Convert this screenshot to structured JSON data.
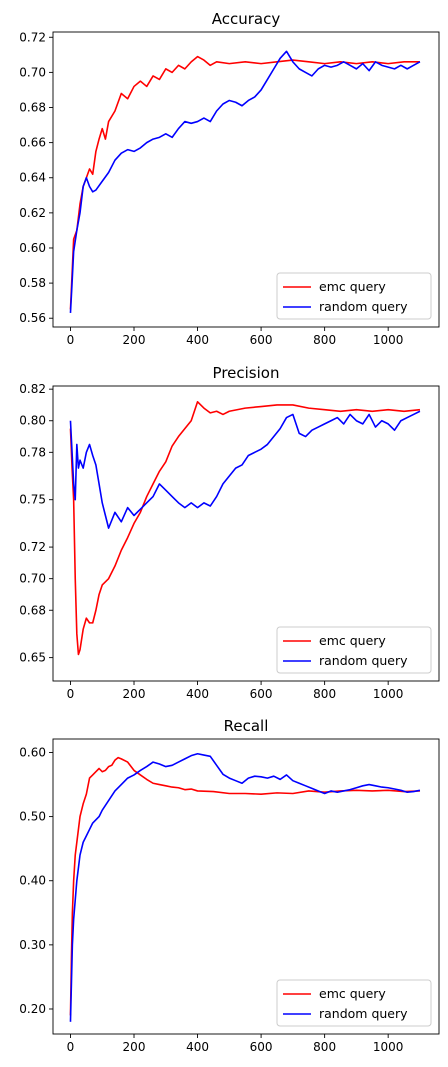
{
  "chart_data": [
    {
      "type": "line",
      "title": "Accuracy",
      "xlim": [
        -55,
        1160
      ],
      "ylim": [
        0.555,
        0.723
      ],
      "xticks": [
        0,
        200,
        400,
        600,
        800,
        1000
      ],
      "yticks": [
        0.56,
        0.58,
        0.6,
        0.62,
        0.64,
        0.66,
        0.68,
        0.7,
        0.72
      ],
      "ytick_labels": [
        "0.56",
        "0.58",
        "0.60",
        "0.62",
        "0.64",
        "0.66",
        "0.68",
        "0.70",
        "0.72"
      ],
      "legend_position": "lower right",
      "series": [
        {
          "name": "emc query",
          "color": "#ff0000",
          "x": [
            0,
            5,
            10,
            20,
            30,
            40,
            50,
            60,
            70,
            80,
            90,
            100,
            110,
            120,
            140,
            160,
            180,
            200,
            220,
            240,
            260,
            280,
            300,
            320,
            340,
            360,
            380,
            400,
            420,
            440,
            460,
            500,
            550,
            600,
            650,
            700,
            750,
            800,
            850,
            900,
            950,
            1000,
            1050,
            1100
          ],
          "y": [
            0.565,
            0.585,
            0.605,
            0.61,
            0.625,
            0.635,
            0.64,
            0.645,
            0.642,
            0.655,
            0.662,
            0.668,
            0.662,
            0.672,
            0.678,
            0.688,
            0.685,
            0.692,
            0.695,
            0.692,
            0.698,
            0.696,
            0.702,
            0.7,
            0.704,
            0.702,
            0.706,
            0.709,
            0.707,
            0.704,
            0.706,
            0.705,
            0.706,
            0.705,
            0.706,
            0.707,
            0.706,
            0.705,
            0.706,
            0.705,
            0.706,
            0.705,
            0.706,
            0.706
          ]
        },
        {
          "name": "random query",
          "color": "#0000ff",
          "x": [
            0,
            5,
            10,
            20,
            30,
            40,
            50,
            60,
            70,
            80,
            100,
            120,
            140,
            160,
            180,
            200,
            220,
            240,
            260,
            280,
            300,
            320,
            340,
            360,
            380,
            400,
            420,
            440,
            460,
            480,
            500,
            520,
            540,
            560,
            580,
            600,
            620,
            640,
            660,
            680,
            700,
            720,
            740,
            760,
            780,
            800,
            820,
            840,
            860,
            880,
            900,
            920,
            940,
            960,
            980,
            1000,
            1020,
            1040,
            1060,
            1080,
            1100
          ],
          "y": [
            0.563,
            0.58,
            0.598,
            0.61,
            0.62,
            0.635,
            0.64,
            0.635,
            0.632,
            0.633,
            0.638,
            0.643,
            0.65,
            0.654,
            0.656,
            0.655,
            0.657,
            0.66,
            0.662,
            0.663,
            0.665,
            0.663,
            0.668,
            0.672,
            0.671,
            0.672,
            0.674,
            0.672,
            0.678,
            0.682,
            0.684,
            0.683,
            0.681,
            0.684,
            0.686,
            0.69,
            0.696,
            0.702,
            0.708,
            0.712,
            0.706,
            0.702,
            0.7,
            0.698,
            0.702,
            0.704,
            0.703,
            0.704,
            0.706,
            0.704,
            0.702,
            0.705,
            0.701,
            0.706,
            0.704,
            0.703,
            0.702,
            0.704,
            0.702,
            0.704,
            0.706
          ]
        }
      ]
    },
    {
      "type": "line",
      "title": "Precision",
      "xlim": [
        -55,
        1160
      ],
      "ylim": [
        0.6352,
        0.822
      ],
      "xticks": [
        0,
        200,
        400,
        600,
        800,
        1000
      ],
      "yticks": [
        0.65,
        0.68,
        0.7,
        0.72,
        0.75,
        0.78,
        0.8,
        0.82
      ],
      "ytick_labels": [
        "0.65",
        "0.68",
        "0.70",
        "0.72",
        "0.75",
        "0.78",
        "0.80",
        "0.82"
      ],
      "legend_position": "lower right",
      "series": [
        {
          "name": "emc query",
          "color": "#ff0000",
          "x": [
            0,
            5,
            10,
            15,
            20,
            25,
            30,
            40,
            50,
            60,
            70,
            80,
            90,
            100,
            120,
            140,
            160,
            180,
            200,
            220,
            240,
            260,
            280,
            300,
            320,
            340,
            360,
            380,
            400,
            420,
            440,
            460,
            480,
            500,
            550,
            600,
            650,
            700,
            750,
            800,
            850,
            900,
            950,
            1000,
            1050,
            1100
          ],
          "y": [
            0.795,
            0.77,
            0.75,
            0.7,
            0.665,
            0.652,
            0.655,
            0.668,
            0.675,
            0.672,
            0.672,
            0.68,
            0.69,
            0.696,
            0.7,
            0.708,
            0.718,
            0.726,
            0.735,
            0.742,
            0.752,
            0.76,
            0.768,
            0.774,
            0.784,
            0.79,
            0.795,
            0.8,
            0.812,
            0.808,
            0.805,
            0.806,
            0.804,
            0.806,
            0.808,
            0.809,
            0.81,
            0.81,
            0.808,
            0.807,
            0.806,
            0.807,
            0.806,
            0.807,
            0.806,
            0.807
          ]
        },
        {
          "name": "random query",
          "color": "#0000ff",
          "x": [
            0,
            5,
            10,
            15,
            20,
            25,
            30,
            40,
            50,
            60,
            70,
            80,
            90,
            100,
            110,
            120,
            140,
            160,
            180,
            200,
            220,
            240,
            260,
            280,
            300,
            320,
            340,
            360,
            380,
            400,
            420,
            440,
            460,
            480,
            500,
            520,
            540,
            560,
            580,
            600,
            620,
            640,
            660,
            680,
            700,
            720,
            740,
            760,
            780,
            800,
            820,
            840,
            860,
            880,
            900,
            920,
            940,
            960,
            980,
            1000,
            1020,
            1040,
            1060,
            1080,
            1100
          ],
          "y": [
            0.8,
            0.78,
            0.76,
            0.75,
            0.785,
            0.77,
            0.775,
            0.77,
            0.78,
            0.785,
            0.778,
            0.772,
            0.76,
            0.748,
            0.74,
            0.732,
            0.742,
            0.736,
            0.745,
            0.74,
            0.744,
            0.748,
            0.752,
            0.76,
            0.756,
            0.752,
            0.748,
            0.745,
            0.748,
            0.745,
            0.748,
            0.746,
            0.752,
            0.76,
            0.765,
            0.77,
            0.772,
            0.778,
            0.78,
            0.782,
            0.785,
            0.79,
            0.795,
            0.802,
            0.804,
            0.792,
            0.79,
            0.794,
            0.796,
            0.798,
            0.8,
            0.802,
            0.798,
            0.804,
            0.8,
            0.798,
            0.804,
            0.796,
            0.8,
            0.798,
            0.794,
            0.8,
            0.802,
            0.804,
            0.806
          ]
        }
      ]
    },
    {
      "type": "line",
      "title": "Recall",
      "xlim": [
        -55,
        1160
      ],
      "ylim": [
        0.161,
        0.621
      ],
      "xticks": [
        0,
        200,
        400,
        600,
        800,
        1000
      ],
      "yticks": [
        0.2,
        0.3,
        0.4,
        0.5,
        0.6
      ],
      "ytick_labels": [
        "0.20",
        "0.30",
        "0.40",
        "0.50",
        "0.60"
      ],
      "legend_position": "lower right",
      "series": [
        {
          "name": "emc query",
          "color": "#ff0000",
          "x": [
            0,
            3,
            6,
            10,
            15,
            20,
            30,
            40,
            50,
            60,
            70,
            80,
            90,
            100,
            110,
            120,
            130,
            140,
            150,
            160,
            180,
            200,
            220,
            240,
            260,
            280,
            300,
            320,
            340,
            360,
            380,
            400,
            450,
            500,
            550,
            600,
            650,
            700,
            750,
            800,
            850,
            900,
            950,
            1000,
            1050,
            1100
          ],
          "y": [
            0.19,
            0.28,
            0.35,
            0.4,
            0.44,
            0.46,
            0.5,
            0.52,
            0.535,
            0.56,
            0.565,
            0.57,
            0.575,
            0.57,
            0.572,
            0.578,
            0.58,
            0.588,
            0.592,
            0.59,
            0.585,
            0.572,
            0.565,
            0.558,
            0.552,
            0.55,
            0.548,
            0.546,
            0.545,
            0.542,
            0.543,
            0.54,
            0.539,
            0.536,
            0.536,
            0.535,
            0.537,
            0.536,
            0.54,
            0.538,
            0.54,
            0.541,
            0.54,
            0.541,
            0.539,
            0.54
          ]
        },
        {
          "name": "random query",
          "color": "#0000ff",
          "x": [
            0,
            3,
            6,
            10,
            15,
            20,
            30,
            40,
            50,
            60,
            70,
            80,
            90,
            100,
            120,
            140,
            160,
            180,
            200,
            220,
            240,
            260,
            280,
            300,
            320,
            340,
            360,
            380,
            400,
            420,
            440,
            460,
            480,
            500,
            520,
            540,
            560,
            580,
            600,
            620,
            640,
            660,
            680,
            700,
            720,
            740,
            760,
            780,
            800,
            820,
            840,
            860,
            880,
            900,
            920,
            940,
            960,
            980,
            1000,
            1020,
            1040,
            1060,
            1080,
            1100
          ],
          "y": [
            0.18,
            0.24,
            0.3,
            0.34,
            0.37,
            0.4,
            0.44,
            0.46,
            0.47,
            0.48,
            0.49,
            0.495,
            0.5,
            0.51,
            0.525,
            0.54,
            0.55,
            0.56,
            0.565,
            0.572,
            0.578,
            0.585,
            0.582,
            0.578,
            0.58,
            0.585,
            0.59,
            0.595,
            0.598,
            0.596,
            0.594,
            0.58,
            0.566,
            0.56,
            0.556,
            0.552,
            0.56,
            0.563,
            0.562,
            0.56,
            0.563,
            0.558,
            0.565,
            0.556,
            0.552,
            0.548,
            0.544,
            0.54,
            0.536,
            0.54,
            0.538,
            0.54,
            0.542,
            0.545,
            0.548,
            0.55,
            0.548,
            0.546,
            0.545,
            0.543,
            0.541,
            0.538,
            0.539,
            0.541
          ]
        }
      ]
    }
  ]
}
